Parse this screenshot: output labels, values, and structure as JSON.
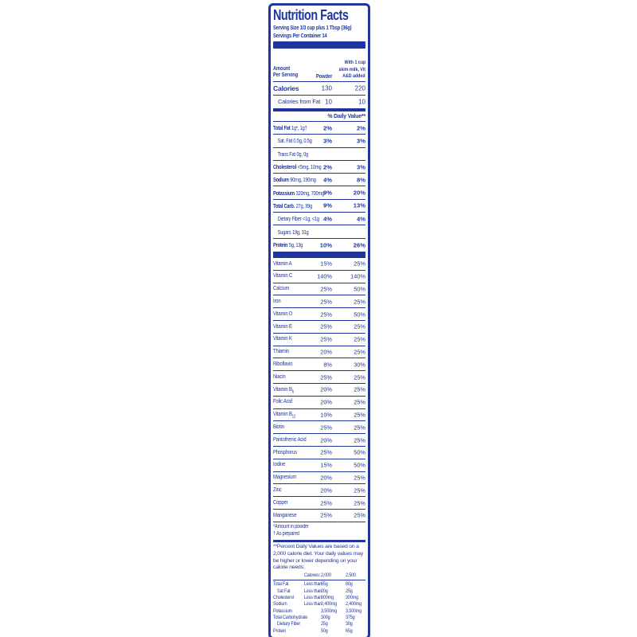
{
  "accent_color": "#20369b",
  "label": {
    "title": "Nutrition Facts",
    "serving_size": "Serving Size 1/3 cup plus 1 Tbsp (36g)",
    "servings_per_container": "Servings Per Container 14"
  },
  "header": {
    "amount_line1": "Amount",
    "amount_line2": "Per Serving",
    "powder": "Powder",
    "prepared_line1": "With 1 cup",
    "prepared_line2": "skim milk, Vit",
    "prepared_line3": "A&D added"
  },
  "calories": {
    "name": "Calories",
    "v1": "130",
    "v2": "220"
  },
  "calories_from_fat": {
    "name": "Calories from Fat",
    "v1": "10",
    "v2": "10"
  },
  "daily_value_header": "% Daily Value**",
  "nutrients": [
    {
      "name": "Total Fat",
      "amount": "1g*, 1g†",
      "v1": "2%",
      "v2": "2%",
      "bold": true
    },
    {
      "name": "Sat. Fat",
      "amount": "0.5g, 0.5g",
      "v1": "3%",
      "v2": "3%",
      "indent": 1
    },
    {
      "name": "Trans Fat",
      "amount": "0g, 0g",
      "v1": "",
      "v2": "",
      "indent": 1
    },
    {
      "name": "Cholesterol",
      "amount": "<5mg, 10mg",
      "v1": "2%",
      "v2": "3%",
      "bold": true
    },
    {
      "name": "Sodium",
      "amount": "90mg, 190mg",
      "v1": "4%",
      "v2": "8%",
      "bold": true
    },
    {
      "name": "Potassium",
      "amount": "320mg, 700mg",
      "v1": "9%",
      "v2": "20%",
      "bold": true
    },
    {
      "name": "Total Carb.",
      "amount": "27g, 39g",
      "v1": "9%",
      "v2": "13%",
      "bold": true
    },
    {
      "name": "Dietary Fiber",
      "amount": "<1g, <1g",
      "v1": "4%",
      "v2": "4%",
      "indent": 1
    },
    {
      "name": "Sugars",
      "amount": "19g, 31g",
      "v1": "",
      "v2": "",
      "indent": 1
    },
    {
      "name": "Protein",
      "amount": "5g, 13g",
      "v1": "10%",
      "v2": "26%",
      "bold": true
    }
  ],
  "vitamins": [
    {
      "name": "Vitamin A",
      "v1": "15%",
      "v2": "25%"
    },
    {
      "name": "Vitamin C",
      "v1": "140%",
      "v2": "140%"
    },
    {
      "name": "Calcium",
      "v1": "25%",
      "v2": "50%"
    },
    {
      "name": "Iron",
      "v1": "25%",
      "v2": "25%"
    },
    {
      "name": "Vitamin D",
      "v1": "25%",
      "v2": "50%"
    },
    {
      "name": "Vitamin E",
      "v1": "25%",
      "v2": "25%"
    },
    {
      "name": "Vitamin K",
      "v1": "25%",
      "v2": "25%"
    },
    {
      "name": "Thiamin",
      "v1": "20%",
      "v2": "25%"
    },
    {
      "name": "Riboflavin",
      "v1": "8%",
      "v2": "30%"
    },
    {
      "name": "Niacin",
      "v1": "25%",
      "v2": "25%"
    },
    {
      "name": "Vitamin B",
      "sub": "6",
      "v1": "20%",
      "v2": "25%"
    },
    {
      "name": "Folic Acid",
      "v1": "20%",
      "v2": "25%"
    },
    {
      "name": "Vitamin B",
      "sub": "12",
      "v1": "10%",
      "v2": "25%"
    },
    {
      "name": "Biotin",
      "v1": "25%",
      "v2": "25%"
    },
    {
      "name": "Pantothenic Acid",
      "v1": "20%",
      "v2": "25%"
    },
    {
      "name": "Phosphorus",
      "v1": "25%",
      "v2": "50%"
    },
    {
      "name": "Iodine",
      "v1": "15%",
      "v2": "50%"
    },
    {
      "name": "Magnesium",
      "v1": "20%",
      "v2": "25%"
    },
    {
      "name": "Zinc",
      "v1": "20%",
      "v2": "25%"
    },
    {
      "name": "Copper",
      "v1": "25%",
      "v2": "25%"
    },
    {
      "name": "Manganese",
      "v1": "25%",
      "v2": "25%"
    }
  ],
  "footnotes": [
    "*Amount in powder",
    "† As prepared"
  ],
  "dv_note": "**Percent Daily Values are based on a 2,000 calorie diet. Your daily values may be higher or lower depending on your calorie needs:",
  "dv_table": {
    "header": {
      "label": "Calories:",
      "c1": "2,000",
      "c2": "2,500"
    },
    "rows": [
      {
        "name": "Total Fat",
        "qualifier": "Less than",
        "c1": "65g",
        "c2": "80g"
      },
      {
        "name": "Sat Fat",
        "qualifier": "Less than",
        "c1": "20g",
        "c2": "25g",
        "indent": 1
      },
      {
        "name": "Cholesterol",
        "qualifier": "Less than",
        "c1": "300mg",
        "c2": "300mg"
      },
      {
        "name": "Sodium",
        "qualifier": "Less than",
        "c1": "2,400mg",
        "c2": "2,400mg"
      },
      {
        "name": "Potassium",
        "qualifier": "",
        "c1": "3,500mg",
        "c2": "3,500mg"
      },
      {
        "name": "Total Carbohydrate",
        "qualifier": "",
        "c1": "300g",
        "c2": "375g"
      },
      {
        "name": "Dietary Fiber",
        "qualifier": "",
        "c1": "25g",
        "c2": "30g",
        "indent": 1
      },
      {
        "name": "Protein",
        "qualifier": "",
        "c1": "50g",
        "c2": "65g"
      }
    ]
  }
}
